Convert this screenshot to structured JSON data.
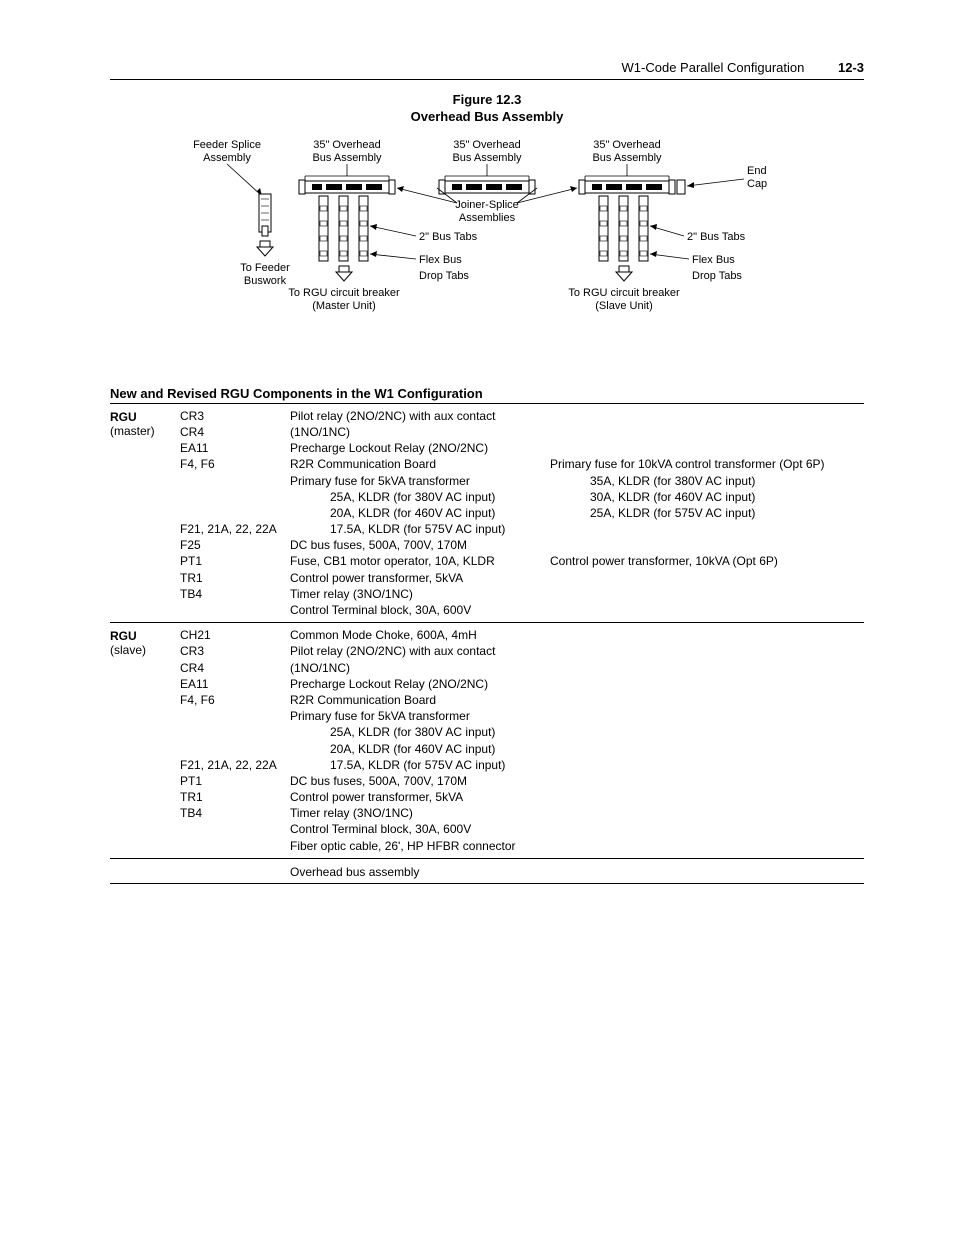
{
  "header": {
    "title": "W1-Code Parallel Configuration",
    "page": "12-3"
  },
  "figure": {
    "num": "Figure 12.3",
    "title": "Overhead Bus Assembly",
    "labels": {
      "feeder_splice": "Feeder Splice",
      "assembly": "Assembly",
      "overhead_35_1": "35\" Overhead",
      "bus_assembly": "Bus Assembly",
      "end": "End",
      "cap": "Cap",
      "joiner_splice": "Joiner-Splice",
      "assemblies": "Assemblies",
      "bus_tabs_2in": "2\" Bus Tabs",
      "flex_bus": "Flex Bus",
      "drop_tabs": "Drop Tabs",
      "to_feeder": "To Feeder",
      "buswork": "Buswork",
      "to_rgu_master_1": "To RGU circuit breaker",
      "to_rgu_master_2": "(Master Unit)",
      "to_rgu_slave_1": "To RGU circuit breaker",
      "to_rgu_slave_2": "(Slave Unit)"
    }
  },
  "section_title": "New and Revised RGU Components in the W1 Configuration",
  "master": {
    "label": "RGU",
    "sublabel": "(master)",
    "rows": [
      {
        "id": "CR3",
        "desc": "Pilot relay (2NO/2NC) with aux contact (1NO/1NC)",
        "desc2": ""
      },
      {
        "id": "CR4",
        "desc": "Precharge Lockout Relay (2NO/2NC)",
        "desc2": ""
      },
      {
        "id": "EA11",
        "desc": "R2R Communication Board",
        "desc2": ""
      },
      {
        "id": "F4, F6",
        "desc": "Primary fuse for 5kVA transformer",
        "desc2": "Primary fuse for 10kVA control transformer (Opt 6P)"
      },
      {
        "id": "",
        "desc": "25A, KLDR (for 380V AC input)",
        "desc2": "35A, KLDR (for 380V AC input)",
        "indent": true
      },
      {
        "id": "",
        "desc": "20A, KLDR (for 460V AC input)",
        "desc2": "30A, KLDR (for 460V AC input)",
        "indent": true
      },
      {
        "id": "",
        "desc": "17.5A, KLDR (for 575V AC input)",
        "desc2": "25A, KLDR (for 575V AC input)",
        "indent": true
      },
      {
        "id": "F21, 21A, 22, 22A",
        "desc": "DC bus fuses, 500A, 700V, 170M",
        "desc2": ""
      },
      {
        "id": "F25",
        "desc": "Fuse, CB1 motor operator, 10A, KLDR",
        "desc2": ""
      },
      {
        "id": "PT1",
        "desc": "Control power transformer, 5kVA",
        "desc2": "Control power transformer, 10kVA (Opt 6P)"
      },
      {
        "id": "TR1",
        "desc": "Timer relay (3NO/1NC)",
        "desc2": ""
      },
      {
        "id": "TB4",
        "desc": "Control Terminal block, 30A, 600V",
        "desc2": ""
      }
    ]
  },
  "slave": {
    "label": "RGU",
    "sublabel": "(slave)",
    "rows": [
      {
        "id": "CH21",
        "desc": "Common Mode Choke, 600A, 4mH",
        "desc2": ""
      },
      {
        "id": "CR3",
        "desc": "Pilot relay (2NO/2NC) with aux contact (1NO/1NC)",
        "desc2": ""
      },
      {
        "id": "CR4",
        "desc": "Precharge Lockout Relay (2NO/2NC)",
        "desc2": ""
      },
      {
        "id": "EA11",
        "desc": "R2R Communication Board",
        "desc2": ""
      },
      {
        "id": "F4, F6",
        "desc": "Primary fuse for 5kVA transformer",
        "desc2": ""
      },
      {
        "id": "",
        "desc": "25A, KLDR (for 380V AC input)",
        "desc2": "",
        "indent": true
      },
      {
        "id": "",
        "desc": "20A, KLDR (for 460V AC input)",
        "desc2": "",
        "indent": true
      },
      {
        "id": "",
        "desc": "17.5A, KLDR (for 575V AC input)",
        "desc2": "",
        "indent": true
      },
      {
        "id": "F21, 21A, 22, 22A",
        "desc": "DC bus fuses, 500A, 700V, 170M",
        "desc2": ""
      },
      {
        "id": "PT1",
        "desc": "Control power transformer, 5kVA",
        "desc2": ""
      },
      {
        "id": "TR1",
        "desc": "Timer relay (3NO/1NC)",
        "desc2": ""
      },
      {
        "id": "TB4",
        "desc": "Control Terminal block, 30A, 600V",
        "desc2": ""
      },
      {
        "id": "",
        "desc": "Fiber optic cable, 26', HP HFBR connector",
        "desc2": ""
      }
    ]
  },
  "footer_row": "Overhead bus assembly"
}
